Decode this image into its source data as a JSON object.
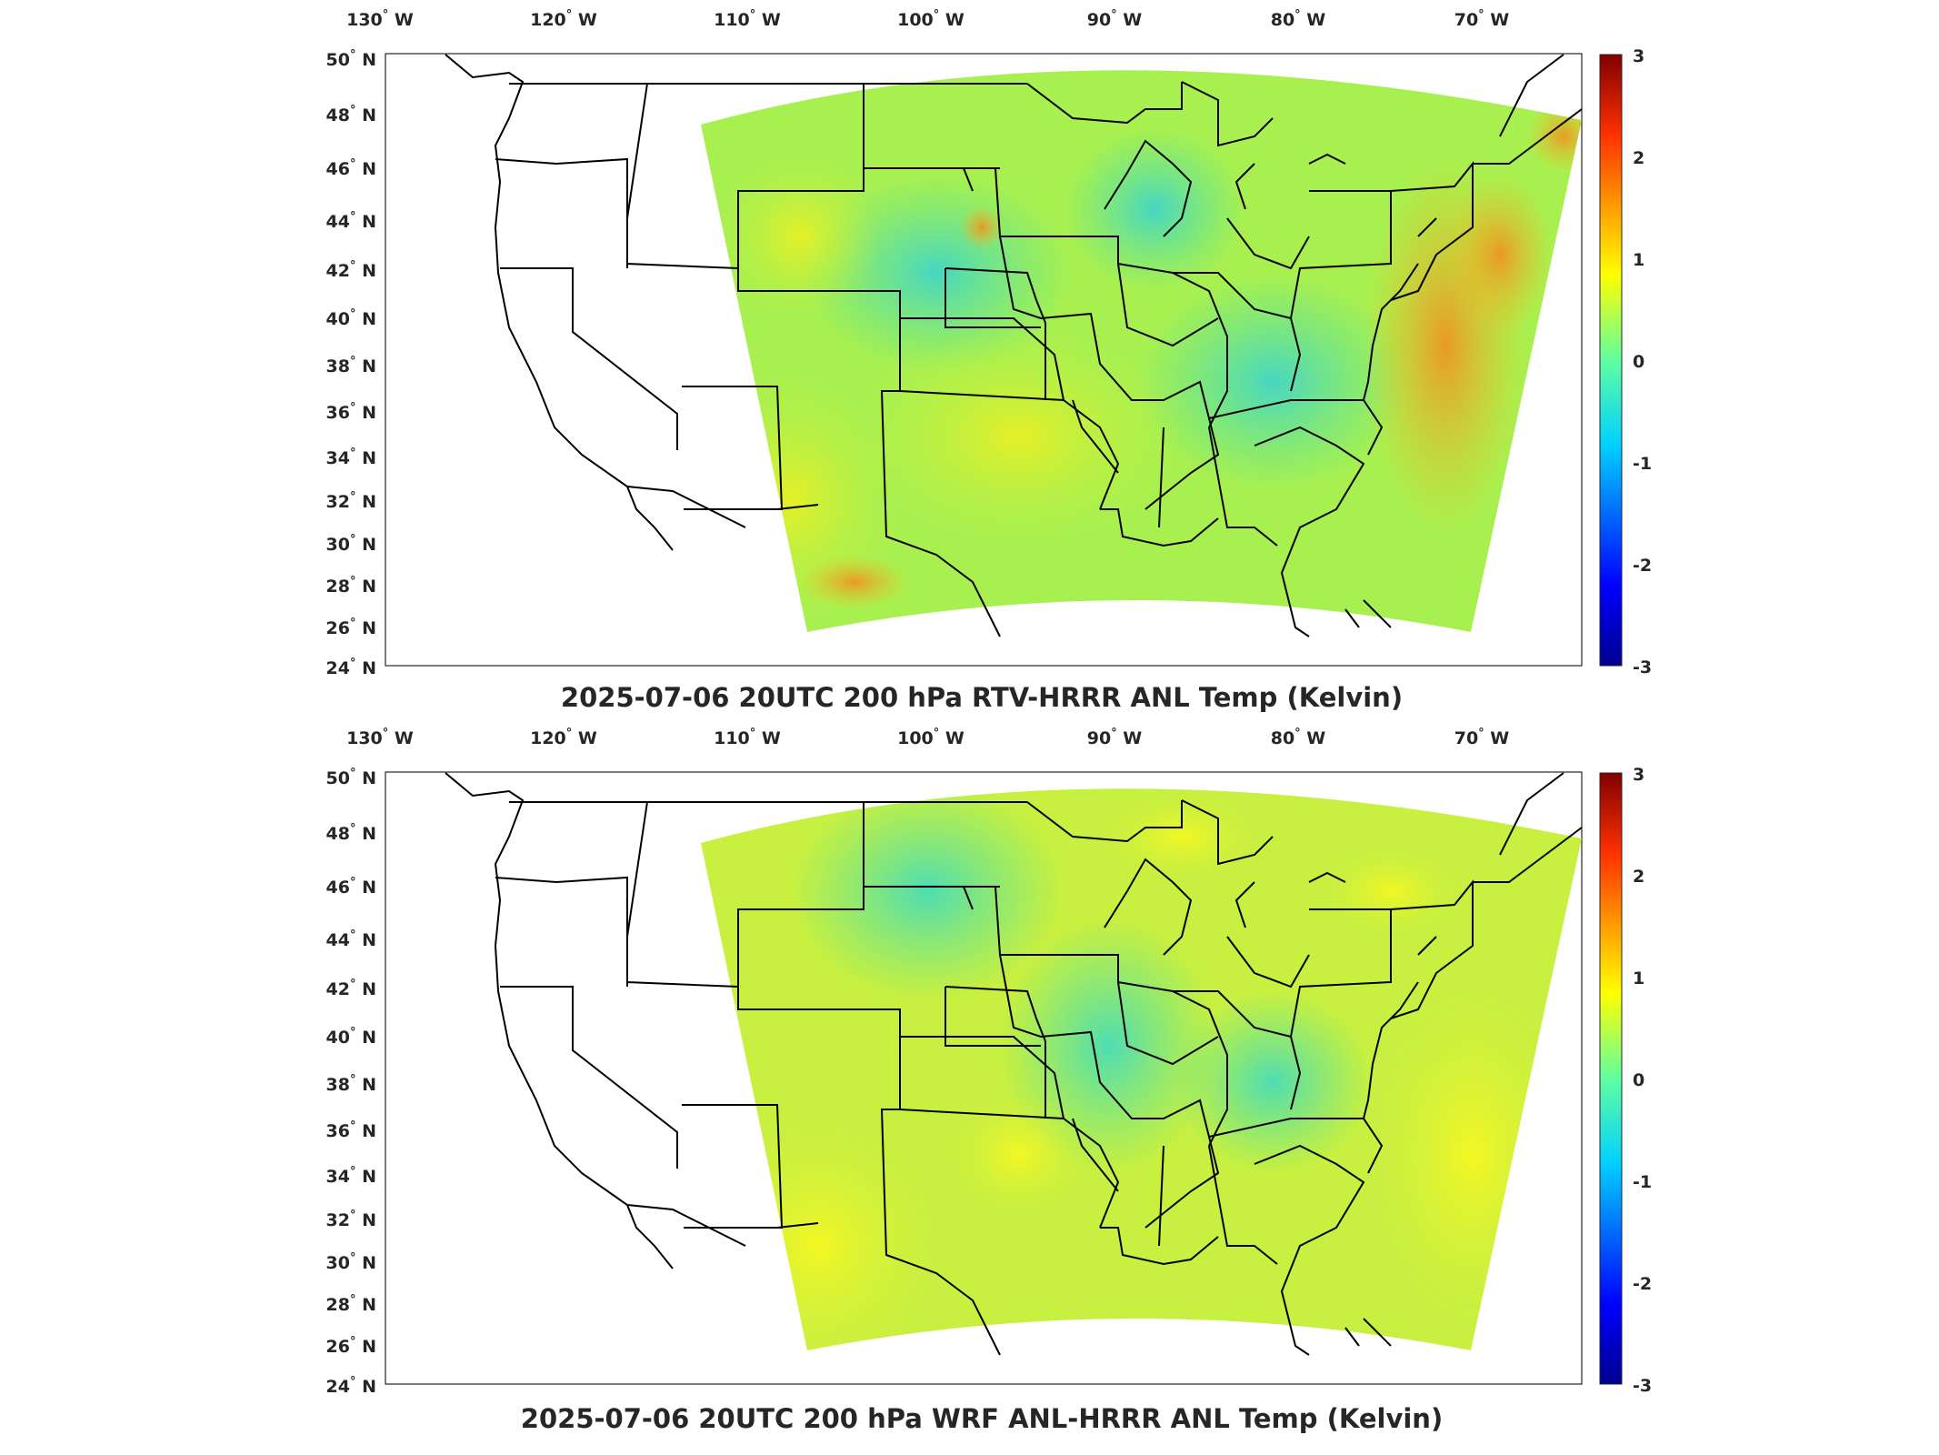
{
  "panels": [
    {
      "title": "2025-07-06 20UTC 200 hPa RTV-HRRR ANL Temp (Kelvin)",
      "lon_ticks": [
        {
          "deg": "130",
          "hemi": "W"
        },
        {
          "deg": "120",
          "hemi": "W"
        },
        {
          "deg": "110",
          "hemi": "W"
        },
        {
          "deg": "100",
          "hemi": "W"
        },
        {
          "deg": "90",
          "hemi": "W"
        },
        {
          "deg": "80",
          "hemi": "W"
        },
        {
          "deg": "70",
          "hemi": "W"
        }
      ],
      "lat_ticks": [
        {
          "deg": "50",
          "hemi": "N"
        },
        {
          "deg": "48",
          "hemi": "N"
        },
        {
          "deg": "46",
          "hemi": "N"
        },
        {
          "deg": "44",
          "hemi": "N"
        },
        {
          "deg": "42",
          "hemi": "N"
        },
        {
          "deg": "40",
          "hemi": "N"
        },
        {
          "deg": "38",
          "hemi": "N"
        },
        {
          "deg": "36",
          "hemi": "N"
        },
        {
          "deg": "34",
          "hemi": "N"
        },
        {
          "deg": "32",
          "hemi": "N"
        },
        {
          "deg": "30",
          "hemi": "N"
        },
        {
          "deg": "28",
          "hemi": "N"
        },
        {
          "deg": "26",
          "hemi": "N"
        },
        {
          "deg": "24",
          "hemi": "N"
        }
      ],
      "colorbar_ticks": [
        "3",
        "2",
        "1",
        "0",
        "-1",
        "-2",
        "-3"
      ]
    },
    {
      "title": "2025-07-06 20UTC 200 hPa WRF ANL-HRRR ANL Temp (Kelvin)",
      "lon_ticks": [
        {
          "deg": "130",
          "hemi": "W"
        },
        {
          "deg": "120",
          "hemi": "W"
        },
        {
          "deg": "110",
          "hemi": "W"
        },
        {
          "deg": "100",
          "hemi": "W"
        },
        {
          "deg": "90",
          "hemi": "W"
        },
        {
          "deg": "80",
          "hemi": "W"
        },
        {
          "deg": "70",
          "hemi": "W"
        }
      ],
      "lat_ticks": [
        {
          "deg": "50",
          "hemi": "N"
        },
        {
          "deg": "48",
          "hemi": "N"
        },
        {
          "deg": "46",
          "hemi": "N"
        },
        {
          "deg": "44",
          "hemi": "N"
        },
        {
          "deg": "42",
          "hemi": "N"
        },
        {
          "deg": "40",
          "hemi": "N"
        },
        {
          "deg": "38",
          "hemi": "N"
        },
        {
          "deg": "36",
          "hemi": "N"
        },
        {
          "deg": "34",
          "hemi": "N"
        },
        {
          "deg": "32",
          "hemi": "N"
        },
        {
          "deg": "30",
          "hemi": "N"
        },
        {
          "deg": "28",
          "hemi": "N"
        },
        {
          "deg": "26",
          "hemi": "N"
        },
        {
          "deg": "24",
          "hemi": "N"
        }
      ],
      "colorbar_ticks": [
        "3",
        "2",
        "1",
        "0",
        "-1",
        "-2",
        "-3"
      ]
    }
  ],
  "colormap": [
    "#00008f",
    "#0000ff",
    "#00bfff",
    "#40ffbf",
    "#bfff40",
    "#ffbf00",
    "#ff2000",
    "#800000"
  ],
  "field_colors": {
    "base": "#a8f050",
    "teal": "#40e0a0",
    "cyan": "#30d8d8",
    "yellow": "#f0f030",
    "orange": "#f0a020"
  }
}
